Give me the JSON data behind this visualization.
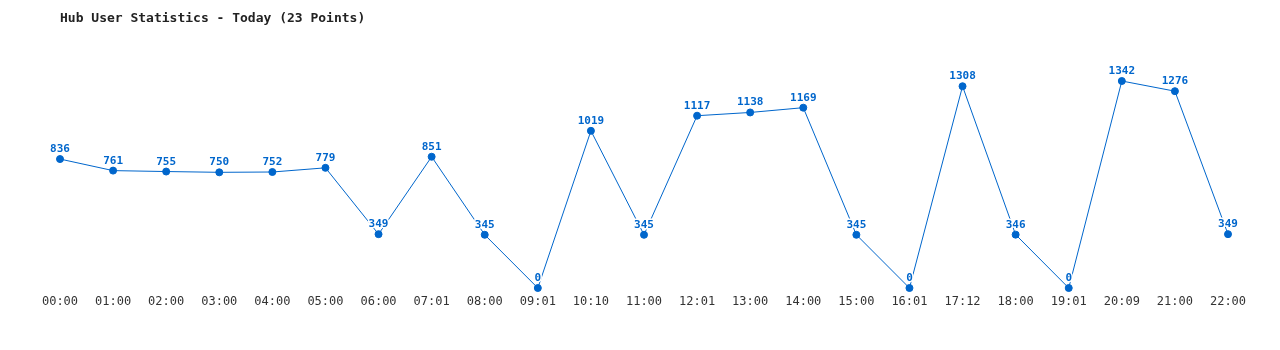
{
  "chart_data": {
    "type": "line",
    "title": "Hub User Statistics - Today (23 Points)",
    "categories": [
      "00:00",
      "01:00",
      "02:00",
      "03:00",
      "04:00",
      "05:00",
      "06:00",
      "07:01",
      "08:00",
      "09:01",
      "10:10",
      "11:00",
      "12:01",
      "13:00",
      "14:00",
      "15:00",
      "16:01",
      "17:12",
      "18:00",
      "19:01",
      "20:09",
      "21:00",
      "22:00"
    ],
    "series": [
      {
        "color": "#0066cc",
        "values": [
          836,
          761,
          755,
          750,
          752,
          779,
          349,
          851,
          345,
          0,
          1019,
          345,
          1117,
          1138,
          1169,
          345,
          0,
          1308,
          346,
          0,
          1342,
          1276,
          349
        ]
      }
    ],
    "data_labels": true,
    "marker": "circle",
    "line_style": "solid"
  }
}
